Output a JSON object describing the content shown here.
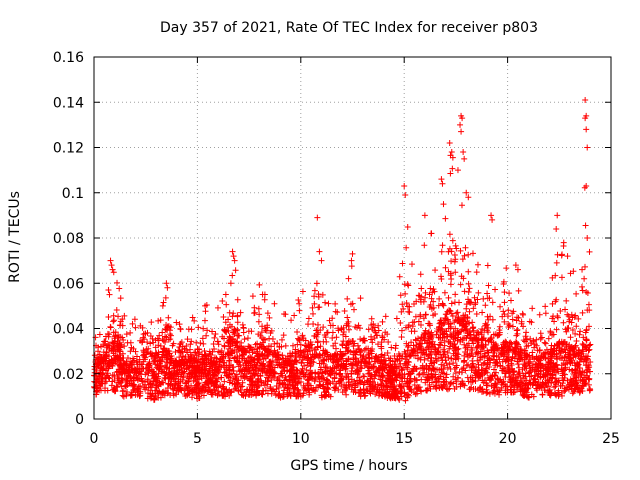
{
  "chart_data": {
    "type": "scatter",
    "title": "Day 357 of 2021, Rate Of TEC Index for receiver p803",
    "xlabel": "GPS time / hours",
    "ylabel": "ROTI / TECUs",
    "xlim": [
      0,
      25
    ],
    "ylim": [
      0,
      0.16
    ],
    "xticks": [
      "0",
      "5",
      "10",
      "15",
      "20",
      "25"
    ],
    "yticks": [
      "0",
      "0.02",
      "0.04",
      "0.06",
      "0.08",
      "0.1",
      "0.12",
      "0.14",
      "0.16"
    ],
    "grid": true,
    "marker": "+",
    "color": "#ff0000",
    "series": [
      {
        "name": "ROTI",
        "envelope": {
          "x": [
            0,
            0.5,
            0.8,
            1.0,
            1.5,
            2.0,
            2.5,
            3.0,
            3.5,
            4.0,
            4.5,
            5.0,
            5.5,
            6.0,
            6.5,
            6.8,
            7.0,
            7.5,
            8.0,
            8.5,
            9.0,
            9.5,
            10.0,
            10.5,
            10.8,
            11.0,
            11.5,
            12.0,
            12.5,
            13.0,
            13.5,
            14.0,
            14.5,
            15.0,
            15.5,
            16.0,
            16.5,
            17.0,
            17.5,
            17.8,
            18.0,
            18.5,
            19.0,
            19.5,
            20.0,
            20.5,
            21.0,
            21.5,
            22.0,
            22.5,
            23.0,
            23.5,
            23.8,
            24.0
          ],
          "upper": [
            0.035,
            0.045,
            0.06,
            0.07,
            0.045,
            0.045,
            0.052,
            0.05,
            0.06,
            0.045,
            0.05,
            0.045,
            0.055,
            0.05,
            0.062,
            0.074,
            0.06,
            0.055,
            0.06,
            0.055,
            0.05,
            0.045,
            0.06,
            0.065,
            0.089,
            0.06,
            0.05,
            0.06,
            0.073,
            0.05,
            0.06,
            0.05,
            0.045,
            0.103,
            0.07,
            0.09,
            0.08,
            0.12,
            0.115,
            0.134,
            0.1,
            0.08,
            0.089,
            0.06,
            0.068,
            0.065,
            0.05,
            0.05,
            0.05,
            0.09,
            0.07,
            0.06,
            0.141,
            0.06
          ],
          "lower": [
            0.008,
            0.01,
            0.009,
            0.008,
            0.007,
            0.008,
            0.006,
            0.005,
            0.007,
            0.008,
            0.007,
            0.006,
            0.008,
            0.007,
            0.006,
            0.008,
            0.007,
            0.006,
            0.007,
            0.008,
            0.006,
            0.007,
            0.006,
            0.007,
            0.008,
            0.006,
            0.007,
            0.008,
            0.006,
            0.007,
            0.008,
            0.007,
            0.006,
            0.004,
            0.007,
            0.008,
            0.009,
            0.007,
            0.008,
            0.009,
            0.007,
            0.008,
            0.006,
            0.007,
            0.008,
            0.007,
            0.006,
            0.008,
            0.007,
            0.006,
            0.007,
            0.008,
            0.006,
            0.005
          ],
          "typical": [
            0.02,
            0.022,
            0.025,
            0.028,
            0.02,
            0.02,
            0.022,
            0.021,
            0.024,
            0.02,
            0.021,
            0.02,
            0.022,
            0.021,
            0.025,
            0.028,
            0.024,
            0.022,
            0.025,
            0.023,
            0.021,
            0.02,
            0.024,
            0.025,
            0.03,
            0.023,
            0.021,
            0.023,
            0.027,
            0.021,
            0.022,
            0.02,
            0.019,
            0.022,
            0.026,
            0.03,
            0.028,
            0.035,
            0.034,
            0.038,
            0.032,
            0.028,
            0.03,
            0.024,
            0.026,
            0.025,
            0.021,
            0.021,
            0.021,
            0.026,
            0.024,
            0.023,
            0.03,
            0.02
          ]
        },
        "peaks": [
          {
            "x": 0.8,
            "y": 0.07
          },
          {
            "x": 0.85,
            "y": 0.068
          },
          {
            "x": 0.9,
            "y": 0.066
          },
          {
            "x": 0.7,
            "y": 0.057
          },
          {
            "x": 0.75,
            "y": 0.055
          },
          {
            "x": 3.5,
            "y": 0.06
          },
          {
            "x": 3.55,
            "y": 0.058
          },
          {
            "x": 6.7,
            "y": 0.074
          },
          {
            "x": 6.75,
            "y": 0.072
          },
          {
            "x": 6.8,
            "y": 0.07
          },
          {
            "x": 10.8,
            "y": 0.089
          },
          {
            "x": 10.9,
            "y": 0.074
          },
          {
            "x": 11.0,
            "y": 0.07
          },
          {
            "x": 12.5,
            "y": 0.073
          },
          {
            "x": 12.45,
            "y": 0.07
          },
          {
            "x": 15.0,
            "y": 0.103
          },
          {
            "x": 15.05,
            "y": 0.099
          },
          {
            "x": 16.0,
            "y": 0.09
          },
          {
            "x": 16.3,
            "y": 0.082
          },
          {
            "x": 16.8,
            "y": 0.106
          },
          {
            "x": 16.85,
            "y": 0.104
          },
          {
            "x": 16.9,
            "y": 0.095
          },
          {
            "x": 17.2,
            "y": 0.122
          },
          {
            "x": 17.3,
            "y": 0.118
          },
          {
            "x": 17.75,
            "y": 0.134
          },
          {
            "x": 17.8,
            "y": 0.133
          },
          {
            "x": 17.7,
            "y": 0.13
          },
          {
            "x": 17.75,
            "y": 0.127
          },
          {
            "x": 17.85,
            "y": 0.118
          },
          {
            "x": 17.9,
            "y": 0.115
          },
          {
            "x": 18.0,
            "y": 0.1
          },
          {
            "x": 18.1,
            "y": 0.098
          },
          {
            "x": 17.6,
            "y": 0.11
          },
          {
            "x": 19.2,
            "y": 0.09
          },
          {
            "x": 19.25,
            "y": 0.088
          },
          {
            "x": 20.4,
            "y": 0.068
          },
          {
            "x": 20.5,
            "y": 0.066
          },
          {
            "x": 22.4,
            "y": 0.09
          },
          {
            "x": 22.35,
            "y": 0.084
          },
          {
            "x": 22.9,
            "y": 0.072
          },
          {
            "x": 23.75,
            "y": 0.141
          },
          {
            "x": 23.8,
            "y": 0.134
          },
          {
            "x": 23.75,
            "y": 0.133
          },
          {
            "x": 23.8,
            "y": 0.128
          },
          {
            "x": 23.85,
            "y": 0.12
          },
          {
            "x": 23.8,
            "y": 0.103
          },
          {
            "x": 23.85,
            "y": 0.08
          },
          {
            "x": 23.6,
            "y": 0.066
          },
          {
            "x": 23.7,
            "y": 0.062
          }
        ]
      }
    ]
  }
}
